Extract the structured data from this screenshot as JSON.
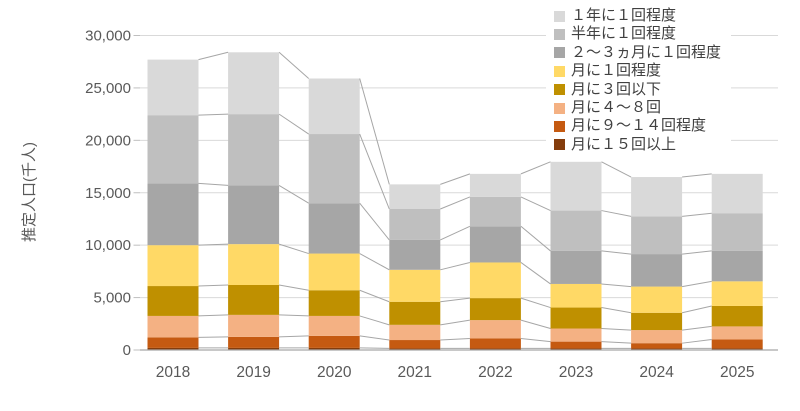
{
  "chart_data": {
    "type": "bar",
    "subtype": "stacked-column-with-series-lines",
    "title": "",
    "ylabel": "推定人口(千人)",
    "xlabel": "",
    "categories": [
      "2018",
      "2019",
      "2020",
      "2021",
      "2022",
      "2023",
      "2024",
      "2025"
    ],
    "series": [
      {
        "name": "月に１５回以上",
        "color": "#843C0C",
        "values": [
          200,
          200,
          200,
          150,
          150,
          150,
          150,
          150
        ]
      },
      {
        "name": "月に９～１４回程度",
        "color": "#C55A11",
        "values": [
          1000,
          1050,
          1150,
          800,
          950,
          650,
          500,
          850
        ]
      },
      {
        "name": "月に４～８回",
        "color": "#F4B183",
        "values": [
          2050,
          2100,
          1900,
          1450,
          1750,
          1250,
          1250,
          1250
        ]
      },
      {
        "name": "月に３回以下",
        "color": "#BF9000",
        "values": [
          2850,
          2850,
          2450,
          2200,
          2100,
          2000,
          1650,
          1950
        ]
      },
      {
        "name": "月に１回程度",
        "color": "#FFD966",
        "values": [
          3900,
          3900,
          3500,
          3050,
          3400,
          2250,
          2500,
          2350
        ]
      },
      {
        "name": "２～３ヵ月に１回程度",
        "color": "#A6A6A6",
        "values": [
          5900,
          5600,
          4800,
          2850,
          3450,
          3150,
          3100,
          2900
        ]
      },
      {
        "name": "半年に１回程度",
        "color": "#BFBFBF",
        "values": [
          6500,
          6800,
          6600,
          2950,
          2800,
          3850,
          3600,
          3600
        ]
      },
      {
        "name": "１年に１回程度",
        "color": "#D9D9D9",
        "values": [
          5300,
          5900,
          5300,
          2350,
          2200,
          4650,
          3750,
          3750
        ]
      }
    ],
    "totals": [
      27700,
      28400,
      25900,
      15800,
      16800,
      17950,
      16500,
      16800
    ],
    "ylim": [
      0,
      30000
    ],
    "ytick_interval": 5000,
    "ytick_labels": [
      "0",
      "5,000",
      "10,000",
      "15,000",
      "20,000",
      "25,000",
      "30,000"
    ],
    "grid": "horizontal",
    "legend_position": "top-right-overlay",
    "legend_order": "top-to-bottom-reverse-of-stack",
    "colors": {
      "gridline": "#D9D9D9",
      "axis_line": "#A6A6A6",
      "tick_mark": "#BFBFBF",
      "series_line": "#A6A6A6",
      "tick_text": "#595959",
      "legend_text": "#404040",
      "background": "#FFFFFF"
    }
  }
}
